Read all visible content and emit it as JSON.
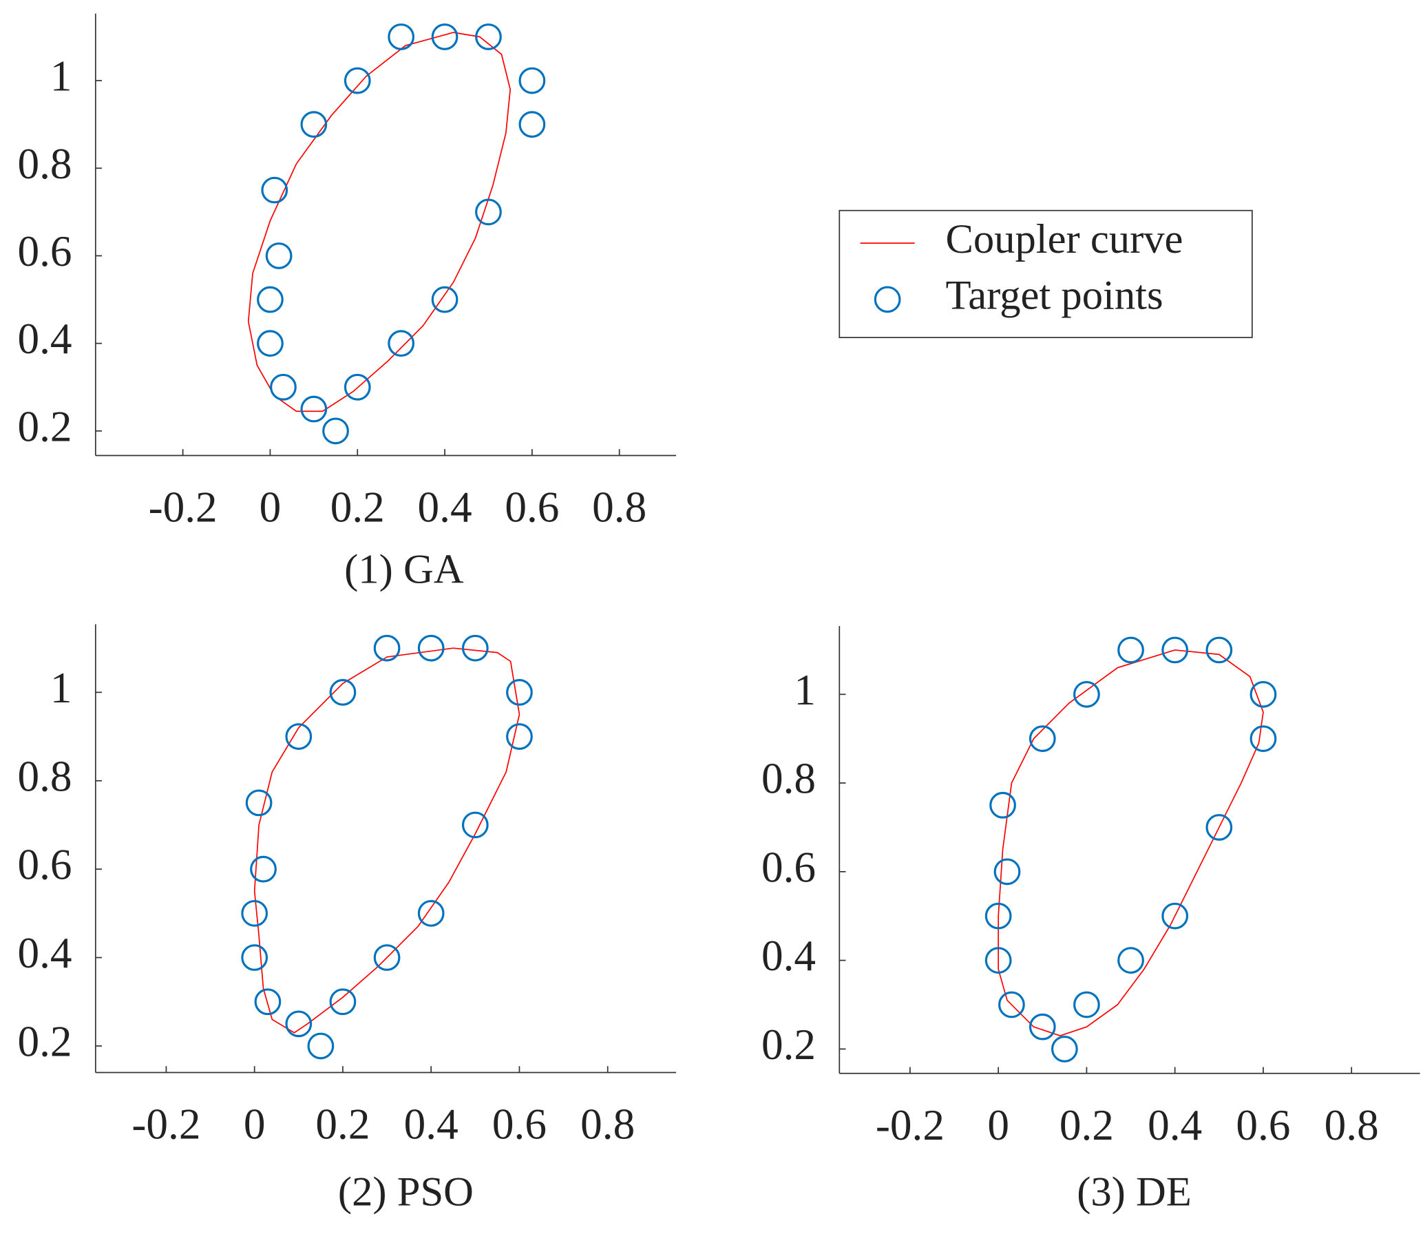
{
  "chart_data": [
    {
      "type": "scatter-line",
      "title": "(1) GA",
      "xlim": [
        -0.4,
        0.93
      ],
      "ylim": [
        0.144,
        1.153
      ],
      "xticks": [
        -0.2,
        0,
        0.2,
        0.4,
        0.6,
        0.8
      ],
      "yticks": [
        0.2,
        0.4,
        0.6,
        0.8,
        1
      ],
      "legend": "right",
      "series": [
        {
          "name": "Coupler curve",
          "color": "#ff0000",
          "kind": "line",
          "x": [
            0.42,
            0.48,
            0.53,
            0.55,
            0.54,
            0.51,
            0.47,
            0.42,
            0.35,
            0.27,
            0.19,
            0.12,
            0.06,
            0.01,
            -0.03,
            -0.05,
            -0.04,
            0.0,
            0.06,
            0.14,
            0.22,
            0.31,
            0.42
          ],
          "y": [
            1.11,
            1.1,
            1.06,
            0.98,
            0.88,
            0.76,
            0.64,
            0.54,
            0.44,
            0.36,
            0.29,
            0.245,
            0.245,
            0.28,
            0.35,
            0.45,
            0.56,
            0.68,
            0.81,
            0.92,
            1.01,
            1.08,
            1.11
          ]
        },
        {
          "name": "Target points",
          "color": "#0072bd",
          "kind": "scatter",
          "x": [
            0.5,
            0.4,
            0.3,
            0.2,
            0.1,
            0.01,
            0.02,
            0,
            0,
            0.03,
            0.1,
            0.15,
            0.2,
            0.3,
            0.4,
            0.5,
            0.6,
            0.6
          ],
          "y": [
            1.1,
            1.1,
            1.1,
            1.0,
            0.9,
            0.75,
            0.6,
            0.5,
            0.4,
            0.3,
            0.25,
            0.2,
            0.3,
            0.4,
            0.5,
            0.7,
            0.9,
            1.0
          ]
        }
      ]
    },
    {
      "type": "scatter-line",
      "title": "(2) PSO",
      "xlim": [
        -0.36,
        0.955
      ],
      "ylim": [
        0.14,
        1.154
      ],
      "xticks": [
        -0.2,
        0,
        0.2,
        0.4,
        0.6,
        0.8
      ],
      "yticks": [
        0.2,
        0.4,
        0.6,
        0.8,
        1
      ],
      "series": [
        {
          "name": "Coupler curve",
          "color": "#ff0000",
          "kind": "line",
          "x": [
            0.45,
            0.55,
            0.58,
            0.6,
            0.57,
            0.5,
            0.44,
            0.37,
            0.28,
            0.2,
            0.12,
            0.09,
            0.04,
            0.02,
            0.01,
            0.0,
            0.01,
            0.04,
            0.1,
            0.2,
            0.3,
            0.45
          ],
          "y": [
            1.1,
            1.09,
            1.07,
            0.95,
            0.82,
            0.68,
            0.57,
            0.47,
            0.38,
            0.31,
            0.25,
            0.23,
            0.26,
            0.33,
            0.45,
            0.55,
            0.7,
            0.82,
            0.92,
            1.02,
            1.08,
            1.1
          ]
        },
        {
          "name": "Target points",
          "color": "#0072bd",
          "kind": "scatter",
          "x": [
            0.5,
            0.4,
            0.3,
            0.2,
            0.1,
            0.01,
            0.02,
            0,
            0,
            0.03,
            0.1,
            0.15,
            0.2,
            0.3,
            0.4,
            0.5,
            0.6,
            0.6
          ],
          "y": [
            1.1,
            1.1,
            1.1,
            1.0,
            0.9,
            0.75,
            0.6,
            0.5,
            0.4,
            0.3,
            0.25,
            0.2,
            0.3,
            0.4,
            0.5,
            0.7,
            0.9,
            1.0
          ]
        }
      ]
    },
    {
      "type": "scatter-line",
      "title": "(3) DE",
      "xlim": [
        -0.36,
        0.955
      ],
      "ylim": [
        0.145,
        1.154
      ],
      "xticks": [
        -0.2,
        0,
        0.2,
        0.4,
        0.6,
        0.8
      ],
      "yticks": [
        0.2,
        0.4,
        0.6,
        0.8,
        1
      ],
      "series": [
        {
          "name": "Coupler curve",
          "color": "#ff0000",
          "kind": "line",
          "x": [
            0.4,
            0.5,
            0.57,
            0.6,
            0.59,
            0.55,
            0.49,
            0.44,
            0.39,
            0.33,
            0.27,
            0.2,
            0.14,
            0.08,
            0.02,
            0.0,
            0.0,
            0.01,
            0.03,
            0.08,
            0.16,
            0.27,
            0.4
          ],
          "y": [
            1.1,
            1.09,
            1.04,
            0.96,
            0.89,
            0.8,
            0.68,
            0.58,
            0.48,
            0.38,
            0.3,
            0.25,
            0.23,
            0.25,
            0.31,
            0.38,
            0.5,
            0.65,
            0.8,
            0.9,
            0.98,
            1.06,
            1.1
          ]
        },
        {
          "name": "Target points",
          "color": "#0072bd",
          "kind": "scatter",
          "x": [
            0.5,
            0.4,
            0.3,
            0.2,
            0.1,
            0.01,
            0.02,
            0,
            0,
            0.03,
            0.1,
            0.15,
            0.2,
            0.3,
            0.4,
            0.5,
            0.6,
            0.6
          ],
          "y": [
            1.1,
            1.1,
            1.1,
            1.0,
            0.9,
            0.75,
            0.6,
            0.5,
            0.4,
            0.3,
            0.25,
            0.2,
            0.3,
            0.4,
            0.5,
            0.7,
            0.9,
            1.0
          ]
        }
      ]
    }
  ]
}
